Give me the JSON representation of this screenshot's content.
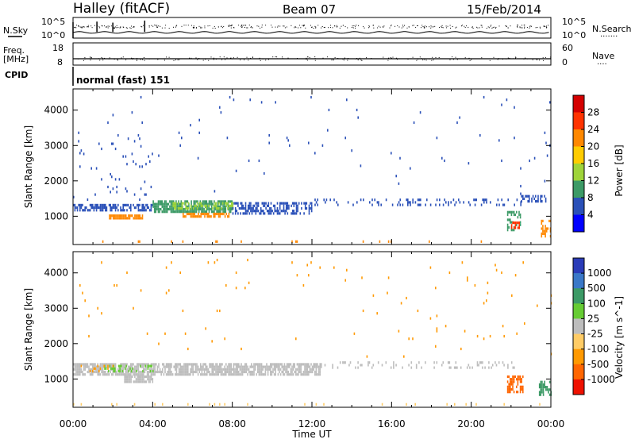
{
  "header": {
    "station": "Halley (fitACF)",
    "beam": "Beam 07",
    "date": "15/Feb/2014"
  },
  "panels": {
    "nsky_label": "N.Sky",
    "nsearch_label": "N.Search",
    "nsky_ticks": [
      "10^5",
      "10^0"
    ],
    "nsearch_ticks": [
      "10^5",
      "10^0"
    ],
    "freq_label": "Freq.",
    "freq_unit": "[MHz]",
    "freq_ticks": [
      "18",
      "8"
    ],
    "nave_label": "Nave",
    "nave_ticks": [
      "60",
      "0"
    ],
    "cpid_label": "CPID",
    "cpid_value": "normal (fast) 151",
    "nsky_series": [
      {
        "x": 0.0,
        "v": 0.6
      },
      {
        "x": 1.2,
        "v": 1.6
      },
      {
        "x": 2.0,
        "v": 1.5
      },
      {
        "x": 3.6,
        "v": 1.7
      },
      {
        "x": 12.0,
        "v": 0.5
      },
      {
        "x": 24.0,
        "v": 0.6
      }
    ],
    "freq_series": [
      {
        "x": 0.0,
        "v": 10
      },
      {
        "x": 24.0,
        "v": 10
      }
    ]
  },
  "chart_data": [
    {
      "type": "heatmap",
      "name": "power",
      "ylabel": "Slant Range [km]",
      "xlim": [
        0,
        24
      ],
      "ylim": [
        200,
        4600
      ],
      "yticks": [
        1000,
        2000,
        3000,
        4000
      ],
      "colorbar": {
        "label": "Power [dB]",
        "ticks": [
          "28",
          "24",
          "20",
          "16",
          "12",
          "8",
          "4"
        ],
        "colors": [
          "#d40000",
          "#ff3300",
          "#ff8800",
          "#ffcc00",
          "#9fd43a",
          "#3c9a66",
          "#2a50b8",
          "#0000ff"
        ]
      },
      "regions": [
        {
          "x": [
            0.0,
            4.0
          ],
          "y": [
            1150,
            1350
          ],
          "color": "#2a50b8",
          "density": 0.6
        },
        {
          "x": [
            4.0,
            8.0
          ],
          "y": [
            1150,
            1450
          ],
          "color": "#3c9a66",
          "density": 0.75
        },
        {
          "x": [
            5.0,
            8.0
          ],
          "y": [
            1250,
            1400
          ],
          "color": "#9fd43a",
          "density": 0.5
        },
        {
          "x": [
            1.8,
            3.5
          ],
          "y": [
            950,
            1050
          ],
          "color": "#ff8800",
          "density": 0.8
        },
        {
          "x": [
            5.5,
            7.8
          ],
          "y": [
            1000,
            1100
          ],
          "color": "#ff8800",
          "density": 0.75
        },
        {
          "x": [
            8.0,
            12.0
          ],
          "y": [
            1100,
            1400
          ],
          "color": "#2a50b8",
          "density": 0.5
        },
        {
          "x": [
            12.0,
            22.5
          ],
          "y": [
            1300,
            1500
          ],
          "color": "#2a50b8",
          "density": 0.18
        },
        {
          "x": [
            22.5,
            23.8
          ],
          "y": [
            1450,
            1600
          ],
          "color": "#2a50b8",
          "density": 0.5
        },
        {
          "x": [
            21.8,
            22.5
          ],
          "y": [
            600,
            1150
          ],
          "color": "#3c9a66",
          "density": 0.45
        },
        {
          "x": [
            22.0,
            22.4
          ],
          "y": [
            650,
            850
          ],
          "color": "#ff3300",
          "density": 0.7
        },
        {
          "x": [
            23.5,
            24.0
          ],
          "y": [
            400,
            900
          ],
          "color": "#ff8800",
          "density": 0.55
        },
        {
          "x": [
            0.0,
            24.0
          ],
          "y": [
            250,
            320
          ],
          "color": "#ff8800",
          "density": 0.05
        },
        {
          "x": [
            0.0,
            24.0
          ],
          "y": [
            1600,
            4400
          ],
          "color": "#2a50b8",
          "density": 0.006
        },
        {
          "x": [
            0.0,
            4.0
          ],
          "y": [
            1500,
            3300
          ],
          "color": "#2a50b8",
          "density": 0.02
        }
      ]
    },
    {
      "type": "heatmap",
      "name": "velocity",
      "ylabel": "Slant Range [km]",
      "xlabel": "Time UT",
      "xlim": [
        0,
        24
      ],
      "ylim": [
        200,
        4600
      ],
      "yticks": [
        1000,
        2000,
        3000,
        4000
      ],
      "xticks": [
        "00:00",
        "04:00",
        "08:00",
        "12:00",
        "16:00",
        "20:00",
        "00:00"
      ],
      "colorbar": {
        "label": "Velocity [m s^-1]",
        "ticks": [
          "1000",
          "500",
          "100",
          "25",
          "-25",
          "-100",
          "-500",
          "-1000"
        ],
        "colors": [
          "#2a3cb8",
          "#3a78c8",
          "#3c9a66",
          "#66cc33",
          "#bdbdbd",
          "#ffcc66",
          "#ff9900",
          "#ff6600",
          "#ee1100"
        ]
      },
      "regions": [
        {
          "x": [
            0.0,
            12.5
          ],
          "y": [
            1150,
            1450
          ],
          "color": "#bdbdbd",
          "density": 0.75
        },
        {
          "x": [
            12.5,
            22.5
          ],
          "y": [
            1300,
            1500
          ],
          "color": "#bdbdbd",
          "density": 0.16
        },
        {
          "x": [
            2.5,
            4.0
          ],
          "y": [
            950,
            1100
          ],
          "color": "#bdbdbd",
          "density": 0.8
        },
        {
          "x": [
            1.5,
            4.0
          ],
          "y": [
            1250,
            1400
          ],
          "color": "#66cc33",
          "density": 0.3
        },
        {
          "x": [
            0.0,
            2.0
          ],
          "y": [
            1200,
            1400
          ],
          "color": "#ff9900",
          "density": 0.2
        },
        {
          "x": [
            21.8,
            22.6
          ],
          "y": [
            650,
            1100
          ],
          "color": "#ff6600",
          "density": 0.6
        },
        {
          "x": [
            23.4,
            24.0
          ],
          "y": [
            550,
            950
          ],
          "color": "#3c9a66",
          "density": 0.55
        },
        {
          "x": [
            0.0,
            24.0
          ],
          "y": [
            250,
            320
          ],
          "color": "#ffcc66",
          "density": 0.05
        },
        {
          "x": [
            0.0,
            24.0
          ],
          "y": [
            1600,
            4400
          ],
          "color": "#ff9900",
          "density": 0.006
        }
      ]
    }
  ]
}
